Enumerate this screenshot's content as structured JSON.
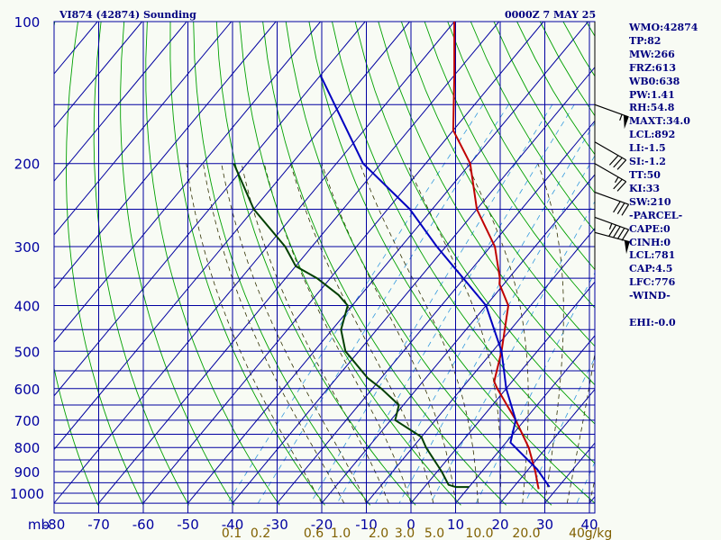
{
  "header": {
    "title": "VI874 (42874) Sounding",
    "stamp": "0000Z  7 MAY 25"
  },
  "indices": [
    "WMO:42874",
    "TP:82",
    "MW:266",
    "FRZ:613",
    "WB0:638",
    "PW:1.41",
    "RH:54.8",
    "MAXT:34.0",
    "LCL:892",
    "LI:-1.5",
    "SI:-1.2",
    "TT:50",
    "KI:33",
    "SW:210",
    "-PARCEL-",
    "CAPE:0",
    "CINH:0",
    "LCL:781",
    "CAP:4.5",
    "LFC:776",
    "-WIND-",
    "",
    "EHI:-0.0"
  ],
  "colors": {
    "grid": "#0000a0",
    "dry_adiabat": "#00a000",
    "moist_adiabat": "#303000",
    "mixing_ratio": "#3399dd",
    "temperature": "#c00000",
    "dewpoint": "#004000",
    "parcel": "#0000c0",
    "background": "#f8fbf4"
  },
  "chart_data": {
    "type": "line",
    "chart_kind": "skew-T log-P sounding",
    "xlabel_corner": "mb",
    "pressure_levels": [
      100,
      200,
      300,
      400,
      500,
      600,
      700,
      800,
      900,
      1000
    ],
    "pressure_tick_labels": [
      "100",
      "200",
      "300",
      "400",
      "500",
      "600",
      "700",
      "800",
      "900",
      "1000"
    ],
    "temperature_ticks": [
      -80,
      -70,
      -60,
      -50,
      -40,
      -30,
      -20,
      -10,
      0,
      10,
      20,
      30,
      40
    ],
    "temperature_tick_labels": [
      "-80",
      "-70",
      "-60",
      "-50",
      "-40",
      "-30",
      "-20",
      "-10",
      "0",
      "10",
      "20",
      "30",
      "40"
    ],
    "mixing_ratio_labels": [
      "0.1",
      "0.2",
      "0.6",
      "1.0",
      "2.0",
      "3.0",
      "5.0",
      "10.0",
      "20.0",
      "40",
      "g/kg"
    ],
    "pressure_range": [
      100,
      1050
    ],
    "log_pressure": true,
    "grid": true,
    "series": [
      {
        "key": "temperature",
        "points": [
          [
            100,
            -80
          ],
          [
            130,
            -70
          ],
          [
            170,
            -60
          ],
          [
            200,
            -50
          ],
          [
            250,
            -40
          ],
          [
            300,
            -29
          ],
          [
            350,
            -22
          ],
          [
            360,
            -21
          ],
          [
            400,
            -15
          ],
          [
            500,
            -8
          ],
          [
            580,
            -4
          ],
          [
            600,
            -2
          ],
          [
            700,
            8
          ],
          [
            800,
            16
          ],
          [
            900,
            22
          ],
          [
            960,
            25
          ],
          [
            980,
            26
          ]
        ]
      },
      {
        "key": "dewpoint",
        "points": [
          [
            200,
            -103
          ],
          [
            250,
            -90
          ],
          [
            300,
            -76
          ],
          [
            330,
            -70
          ],
          [
            350,
            -63
          ],
          [
            380,
            -55
          ],
          [
            400,
            -51
          ],
          [
            450,
            -48
          ],
          [
            500,
            -43
          ],
          [
            570,
            -33
          ],
          [
            600,
            -28
          ],
          [
            650,
            -21
          ],
          [
            700,
            -19
          ],
          [
            760,
            -10
          ],
          [
            800,
            -7
          ],
          [
            900,
            1
          ],
          [
            960,
            5
          ],
          [
            970,
            7
          ],
          [
            970,
            10
          ]
        ]
      },
      {
        "key": "parcel",
        "points": [
          [
            130,
            -100
          ],
          [
            200,
            -74
          ],
          [
            250,
            -55
          ],
          [
            300,
            -42
          ],
          [
            400,
            -20
          ],
          [
            500,
            -8
          ],
          [
            600,
            0
          ],
          [
            700,
            8
          ],
          [
            781,
            11
          ],
          [
            890,
            22
          ],
          [
            970,
            28
          ]
        ]
      }
    ],
    "wind_barbs": [
      {
        "pressure": 150,
        "direction_deg": 250,
        "speed_kt": 55
      },
      {
        "pressure": 180,
        "direction_deg": 240,
        "speed_kt": 30
      },
      {
        "pressure": 200,
        "direction_deg": 240,
        "speed_kt": 25
      },
      {
        "pressure": 230,
        "direction_deg": 250,
        "speed_kt": 30
      },
      {
        "pressure": 260,
        "direction_deg": 250,
        "speed_kt": 45
      },
      {
        "pressure": 280,
        "direction_deg": 255,
        "speed_kt": 50
      }
    ]
  }
}
